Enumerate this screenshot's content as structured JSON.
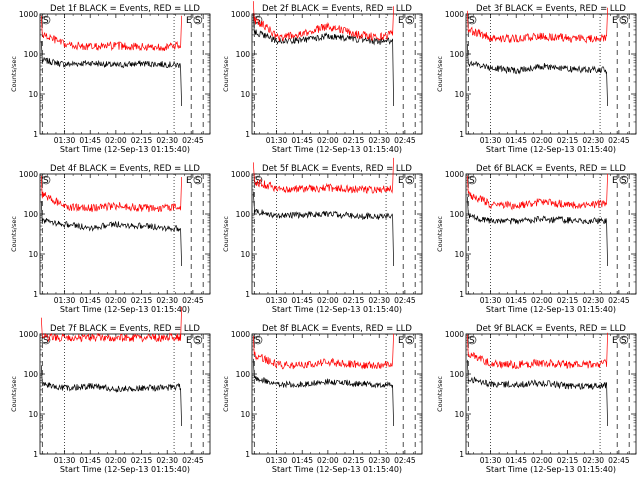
{
  "figure": {
    "x_tick_labels": [
      "01:30",
      "01:45",
      "02:00",
      "02:15",
      "02:30",
      "02:45"
    ],
    "y_tick_labels": [
      "1",
      "10",
      "100",
      "1000"
    ],
    "colors": {
      "events": "#000000",
      "lld": "#ff0000",
      "axes": "#000000"
    }
  },
  "chart_data": [
    {
      "type": "line",
      "detector": "1f",
      "title": "Det 1f BLACK = Events, RED = LLD",
      "xlabel": "Start Time (12-Sep-13 01:15:40)",
      "ylabel": "Counts/sec",
      "xlim": [
        "01:15:40",
        "02:55"
      ],
      "ylim": [
        1,
        1000
      ],
      "y_scale": "log",
      "markers": {
        "left_label": "S",
        "right_labels": [
          "E",
          "S"
        ]
      },
      "series": [
        {
          "name": "BLACK = Events",
          "color": "#000000",
          "level": 50,
          "x": [
            "01:17",
            "01:30",
            "01:45",
            "02:00",
            "02:15",
            "02:30",
            "02:38"
          ],
          "y": [
            70,
            55,
            60,
            52,
            58,
            55,
            52
          ]
        },
        {
          "name": "RED = LLD",
          "color": "#ff0000",
          "level": 150,
          "x": [
            "01:17",
            "01:30",
            "01:45",
            "02:00",
            "02:15",
            "02:30",
            "02:38"
          ],
          "y": [
            300,
            170,
            150,
            160,
            150,
            150,
            160
          ]
        }
      ]
    },
    {
      "type": "line",
      "detector": "2f",
      "title": "Det 2f BLACK = Events, RED = LLD",
      "xlabel": "Start Time (12-Sep-13 01:15:40)",
      "ylabel": "Counts/sec",
      "xlim": [
        "01:15:40",
        "02:55"
      ],
      "ylim": [
        1,
        1000
      ],
      "y_scale": "log",
      "markers": {
        "left_label": "S",
        "right_labels": [
          "E",
          "S"
        ]
      },
      "series": [
        {
          "name": "BLACK = Events",
          "color": "#000000",
          "level": 200,
          "x": [
            "01:17",
            "01:30",
            "01:45",
            "02:00",
            "02:15",
            "02:30",
            "02:38"
          ],
          "y": [
            350,
            210,
            220,
            280,
            240,
            200,
            220
          ]
        },
        {
          "name": "RED = LLD",
          "color": "#ff0000",
          "level": 260,
          "x": [
            "01:17",
            "01:30",
            "01:45",
            "02:00",
            "02:15",
            "02:30",
            "02:38"
          ],
          "y": [
            700,
            260,
            300,
            500,
            320,
            260,
            330
          ]
        }
      ]
    },
    {
      "type": "line",
      "detector": "3f",
      "title": "Det 3f BLACK = Events, RED = LLD",
      "xlabel": "Start Time (12-Sep-13 01:15:40)",
      "ylabel": "Counts/sec",
      "xlim": [
        "01:15:40",
        "02:55"
      ],
      "ylim": [
        1,
        1000
      ],
      "y_scale": "log",
      "markers": {
        "left_label": "S",
        "right_labels": [
          "E",
          "S"
        ]
      },
      "series": [
        {
          "name": "BLACK = Events",
          "color": "#000000",
          "level": 45,
          "x": [
            "01:17",
            "01:30",
            "01:45",
            "02:00",
            "02:15",
            "02:30",
            "02:38"
          ],
          "y": [
            60,
            45,
            38,
            50,
            42,
            40,
            40
          ]
        },
        {
          "name": "RED = LLD",
          "color": "#ff0000",
          "level": 240,
          "x": [
            "01:17",
            "01:30",
            "01:45",
            "02:00",
            "02:15",
            "02:30",
            "02:38"
          ],
          "y": [
            400,
            250,
            240,
            280,
            250,
            240,
            240
          ]
        }
      ]
    },
    {
      "type": "line",
      "detector": "4f",
      "title": "Det 4f BLACK = Events, RED = LLD",
      "xlabel": "Start Time (12-Sep-13 01:15:40)",
      "ylabel": "Counts/sec",
      "xlim": [
        "01:15:40",
        "02:55"
      ],
      "ylim": [
        1,
        1000
      ],
      "y_scale": "log",
      "markers": {
        "left_label": "S",
        "right_labels": [
          "E",
          "S"
        ]
      },
      "series": [
        {
          "name": "BLACK = Events",
          "color": "#000000",
          "level": 50,
          "x": [
            "01:17",
            "01:30",
            "01:45",
            "02:00",
            "02:15",
            "02:30",
            "02:38"
          ],
          "y": [
            70,
            55,
            45,
            55,
            50,
            45,
            42
          ]
        },
        {
          "name": "RED = LLD",
          "color": "#ff0000",
          "level": 140,
          "x": [
            "01:17",
            "01:30",
            "01:45",
            "02:00",
            "02:15",
            "02:30",
            "02:38"
          ],
          "y": [
            300,
            150,
            140,
            160,
            140,
            140,
            150
          ]
        }
      ]
    },
    {
      "type": "line",
      "detector": "5f",
      "title": "Det 5f BLACK = Events, RED = LLD",
      "xlabel": "Start Time (12-Sep-13 01:15:40)",
      "ylabel": "Counts/sec",
      "xlim": [
        "01:15:40",
        "02:55"
      ],
      "ylim": [
        1,
        1000
      ],
      "y_scale": "log",
      "markers": {
        "left_label": "S",
        "right_labels": [
          "E",
          "S"
        ]
      },
      "series": [
        {
          "name": "BLACK = Events",
          "color": "#000000",
          "level": 90,
          "x": [
            "01:17",
            "01:30",
            "01:45",
            "02:00",
            "02:15",
            "02:30",
            "02:38"
          ],
          "y": [
            120,
            90,
            95,
            100,
            90,
            85,
            90
          ]
        },
        {
          "name": "RED = LLD",
          "color": "#ff0000",
          "level": 420,
          "x": [
            "01:17",
            "01:30",
            "01:45",
            "02:00",
            "02:15",
            "02:30",
            "02:38"
          ],
          "y": [
            650,
            430,
            420,
            450,
            420,
            410,
            420
          ]
        }
      ]
    },
    {
      "type": "line",
      "detector": "6f",
      "title": "Det 6f BLACK = Events, RED = LLD",
      "xlabel": "Start Time (12-Sep-13 01:15:40)",
      "ylabel": "Counts/sec",
      "xlim": [
        "01:15:40",
        "02:55"
      ],
      "ylim": [
        1,
        1000
      ],
      "y_scale": "log",
      "markers": {
        "left_label": "S",
        "right_labels": [
          "E",
          "S"
        ]
      },
      "series": [
        {
          "name": "BLACK = Events",
          "color": "#000000",
          "level": 65,
          "x": [
            "01:17",
            "01:30",
            "01:45",
            "02:00",
            "02:15",
            "02:30",
            "02:38"
          ],
          "y": [
            90,
            65,
            65,
            75,
            70,
            68,
            65
          ]
        },
        {
          "name": "RED = LLD",
          "color": "#ff0000",
          "level": 170,
          "x": [
            "01:17",
            "01:30",
            "01:45",
            "02:00",
            "02:15",
            "02:30",
            "02:38"
          ],
          "y": [
            300,
            170,
            160,
            200,
            170,
            170,
            180
          ]
        }
      ]
    },
    {
      "type": "line",
      "detector": "7f",
      "title": "Det 7f BLACK = Events, RED = LLD",
      "xlabel": "Start Time (12-Sep-13 01:15:40)",
      "ylabel": "Counts/sec",
      "xlim": [
        "01:15:40",
        "02:55"
      ],
      "ylim": [
        1,
        1000
      ],
      "y_scale": "log",
      "markers": {
        "left_label": "S",
        "right_labels": [
          "E",
          "S"
        ]
      },
      "series": [
        {
          "name": "BLACK = Events",
          "color": "#000000",
          "level": 45,
          "x": [
            "01:17",
            "01:30",
            "01:45",
            "02:00",
            "02:15",
            "02:30",
            "02:38"
          ],
          "y": [
            55,
            45,
            50,
            42,
            45,
            45,
            48
          ]
        },
        {
          "name": "RED = LLD",
          "color": "#ff0000",
          "level": 800,
          "x": [
            "01:17",
            "01:30",
            "01:45",
            "02:00",
            "02:15",
            "02:30",
            "02:38"
          ],
          "y": [
            850,
            800,
            820,
            800,
            810,
            820,
            830
          ]
        }
      ]
    },
    {
      "type": "line",
      "detector": "8f",
      "title": "Det 8f BLACK = Events, RED = LLD",
      "xlabel": "Start Time (12-Sep-13 01:15:40)",
      "ylabel": "Counts/sec",
      "xlim": [
        "01:15:40",
        "02:55"
      ],
      "ylim": [
        1,
        1000
      ],
      "y_scale": "log",
      "markers": {
        "left_label": "S",
        "right_labels": [
          "E",
          "S"
        ]
      },
      "series": [
        {
          "name": "BLACK = Events",
          "color": "#000000",
          "level": 55,
          "x": [
            "01:17",
            "01:30",
            "01:45",
            "02:00",
            "02:15",
            "02:30",
            "02:38"
          ],
          "y": [
            80,
            55,
            55,
            65,
            58,
            55,
            55
          ]
        },
        {
          "name": "RED = LLD",
          "color": "#ff0000",
          "level": 170,
          "x": [
            "01:17",
            "01:30",
            "01:45",
            "02:00",
            "02:15",
            "02:30",
            "02:38"
          ],
          "y": [
            300,
            170,
            160,
            200,
            170,
            165,
            175
          ]
        }
      ]
    },
    {
      "type": "line",
      "detector": "9f",
      "title": "Det 9f BLACK = Events, RED = LLD",
      "xlabel": "Start Time (12-Sep-13 01:15:40)",
      "ylabel": "Counts/sec",
      "xlim": [
        "01:15:40",
        "02:55"
      ],
      "ylim": [
        1,
        1000
      ],
      "y_scale": "log",
      "markers": {
        "left_label": "S",
        "right_labels": [
          "E",
          "S"
        ]
      },
      "series": [
        {
          "name": "BLACK = Events",
          "color": "#000000",
          "level": 55,
          "x": [
            "01:17",
            "01:30",
            "01:45",
            "02:00",
            "02:15",
            "02:30",
            "02:38"
          ],
          "y": [
            75,
            55,
            55,
            60,
            50,
            50,
            52
          ]
        },
        {
          "name": "RED = LLD",
          "color": "#ff0000",
          "level": 180,
          "x": [
            "01:17",
            "01:30",
            "01:45",
            "02:00",
            "02:15",
            "02:30",
            "02:38"
          ],
          "y": [
            320,
            180,
            170,
            190,
            170,
            175,
            190
          ]
        }
      ]
    }
  ]
}
